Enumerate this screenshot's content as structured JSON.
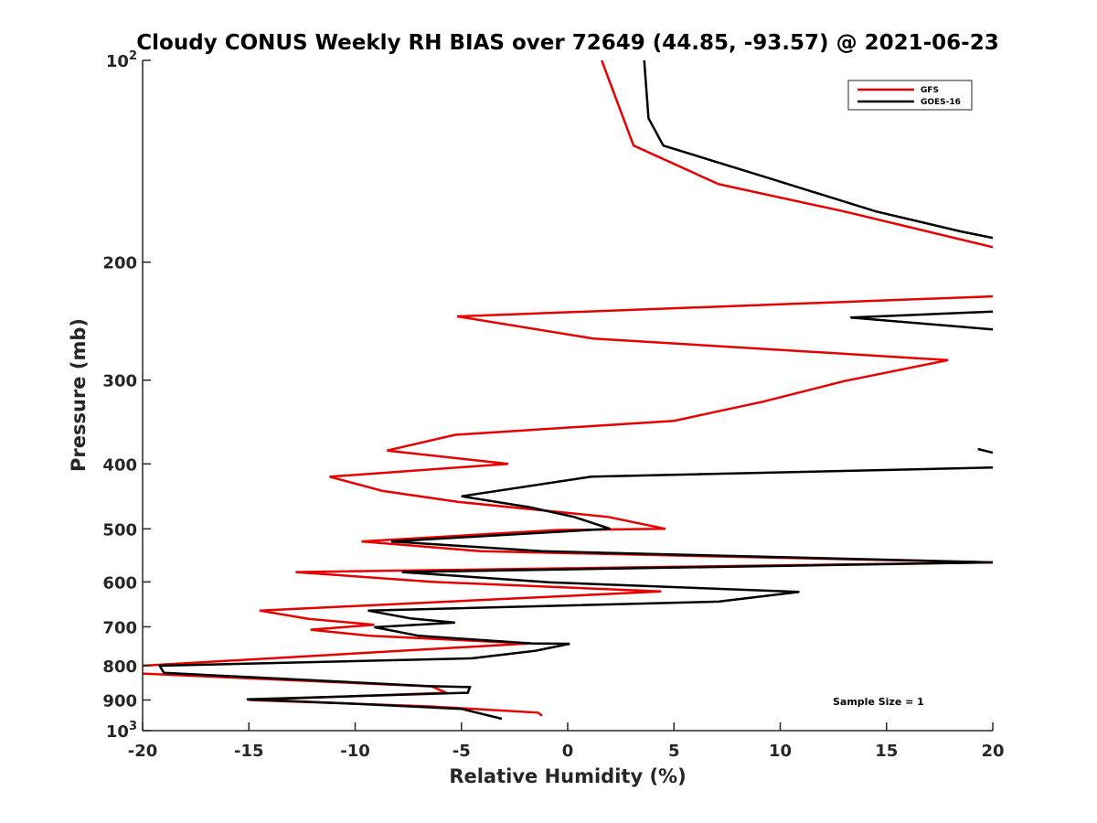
{
  "chart_data": {
    "type": "line",
    "title": "Cloudy CONUS Weekly RH BIAS over 72649 (44.85, -93.57) @ 2021-06-23",
    "xlabel": "Relative Humidity (%)",
    "ylabel": "Pressure (mb)",
    "xlim": [
      -20,
      20
    ],
    "ylim": [
      100,
      1000
    ],
    "yscale": "log",
    "yreversed": true,
    "grid": false,
    "legend_position": "top-right",
    "annotation": "Sample Size = 1",
    "x_ticks": [
      {
        "value": -20,
        "label": "-20"
      },
      {
        "value": -15,
        "label": "-15"
      },
      {
        "value": -10,
        "label": "-10"
      },
      {
        "value": -5,
        "label": "-5"
      },
      {
        "value": 0,
        "label": "0"
      },
      {
        "value": 5,
        "label": "5"
      },
      {
        "value": 10,
        "label": "10"
      },
      {
        "value": 15,
        "label": "15"
      },
      {
        "value": 20,
        "label": "20"
      }
    ],
    "y_ticks": [
      {
        "value": 100,
        "base": "10",
        "exp": "2"
      },
      {
        "value": 200,
        "base": "200",
        "exp": ""
      },
      {
        "value": 300,
        "base": "300",
        "exp": ""
      },
      {
        "value": 400,
        "base": "400",
        "exp": ""
      },
      {
        "value": 500,
        "base": "500",
        "exp": ""
      },
      {
        "value": 600,
        "base": "600",
        "exp": ""
      },
      {
        "value": 700,
        "base": "700",
        "exp": ""
      },
      {
        "value": 800,
        "base": "800",
        "exp": ""
      },
      {
        "value": 900,
        "base": "900",
        "exp": ""
      },
      {
        "value": 1000,
        "base": "10",
        "exp": "3"
      }
    ],
    "series": [
      {
        "name": "GFS",
        "color": "#e60000",
        "points": [
          [
            1.6,
            100
          ],
          [
            3.1,
            134
          ],
          [
            7.1,
            153
          ],
          [
            13,
            168
          ],
          [
            20,
            190
          ],
          [
            null,
            null
          ],
          [
            20,
            225
          ],
          [
            -5.2,
            241
          ],
          [
            1.2,
            260
          ],
          [
            17.9,
            280
          ],
          [
            13,
            301
          ],
          [
            9.2,
            323
          ],
          [
            5,
            345
          ],
          [
            -5.3,
            362
          ],
          [
            -8.5,
            382
          ],
          [
            -2.8,
            400
          ],
          [
            -11.2,
            418
          ],
          [
            -8.7,
            439
          ],
          [
            -5.1,
            456
          ],
          [
            1.9,
            480
          ],
          [
            4.6,
            500
          ],
          [
            -0.5,
            502
          ],
          [
            -9.7,
            522
          ],
          [
            -4.1,
            540
          ],
          [
            20,
            561
          ],
          [
            -12.8,
            580
          ],
          [
            -6.3,
            600
          ],
          [
            4.4,
            620
          ],
          [
            -14.5,
            662
          ],
          [
            -12.2,
            681
          ],
          [
            -9.1,
            695
          ],
          [
            -12.1,
            707
          ],
          [
            -9.3,
            722
          ],
          [
            -1.8,
            741
          ],
          [
            -20,
            800
          ],
          [
            null,
            null
          ],
          [
            -20,
            822
          ],
          [
            -6.4,
            859
          ],
          [
            -5.7,
            878
          ],
          [
            -15,
            900
          ],
          [
            -6.5,
            920
          ],
          [
            -1.4,
            940
          ],
          [
            -1.2,
            950
          ]
        ]
      },
      {
        "name": "GOES-16",
        "color": "#000000",
        "points": [
          [
            3.6,
            100
          ],
          [
            3.8,
            122
          ],
          [
            4.5,
            134
          ],
          [
            9.5,
            150
          ],
          [
            14.5,
            168
          ],
          [
            18.5,
            180
          ],
          [
            20,
            184
          ],
          [
            null,
            null
          ],
          [
            20,
            237
          ],
          [
            13.3,
            242
          ],
          [
            20,
            252
          ],
          [
            null,
            null
          ],
          [
            19.3,
            380
          ],
          [
            20,
            385
          ],
          [
            null,
            null
          ],
          [
            20,
            405
          ],
          [
            1.1,
            418
          ],
          [
            -5,
            447
          ],
          [
            -1.8,
            464
          ],
          [
            0.3,
            480
          ],
          [
            2,
            500
          ],
          [
            -8.3,
            522
          ],
          [
            -1.2,
            540
          ],
          [
            20,
            561
          ],
          [
            -7.8,
            580
          ],
          [
            -0.8,
            601
          ],
          [
            10.9,
            621
          ],
          [
            7.1,
            642
          ],
          [
            -9.4,
            662
          ],
          [
            -7.4,
            680
          ],
          [
            -5.3,
            690
          ],
          [
            -9.1,
            701
          ],
          [
            -7,
            722
          ],
          [
            -1.7,
            741
          ],
          [
            0.1,
            742
          ],
          [
            -1.5,
            760
          ],
          [
            -4.5,
            780
          ],
          [
            -19.2,
            800
          ],
          [
            -19,
            820
          ],
          [
            -6.6,
            858
          ],
          [
            -4.6,
            861
          ],
          [
            -4.7,
            878
          ],
          [
            -15.1,
            898
          ],
          [
            -10.6,
            910
          ],
          [
            -5,
            928
          ],
          [
            -3.1,
            960
          ]
        ]
      }
    ]
  }
}
